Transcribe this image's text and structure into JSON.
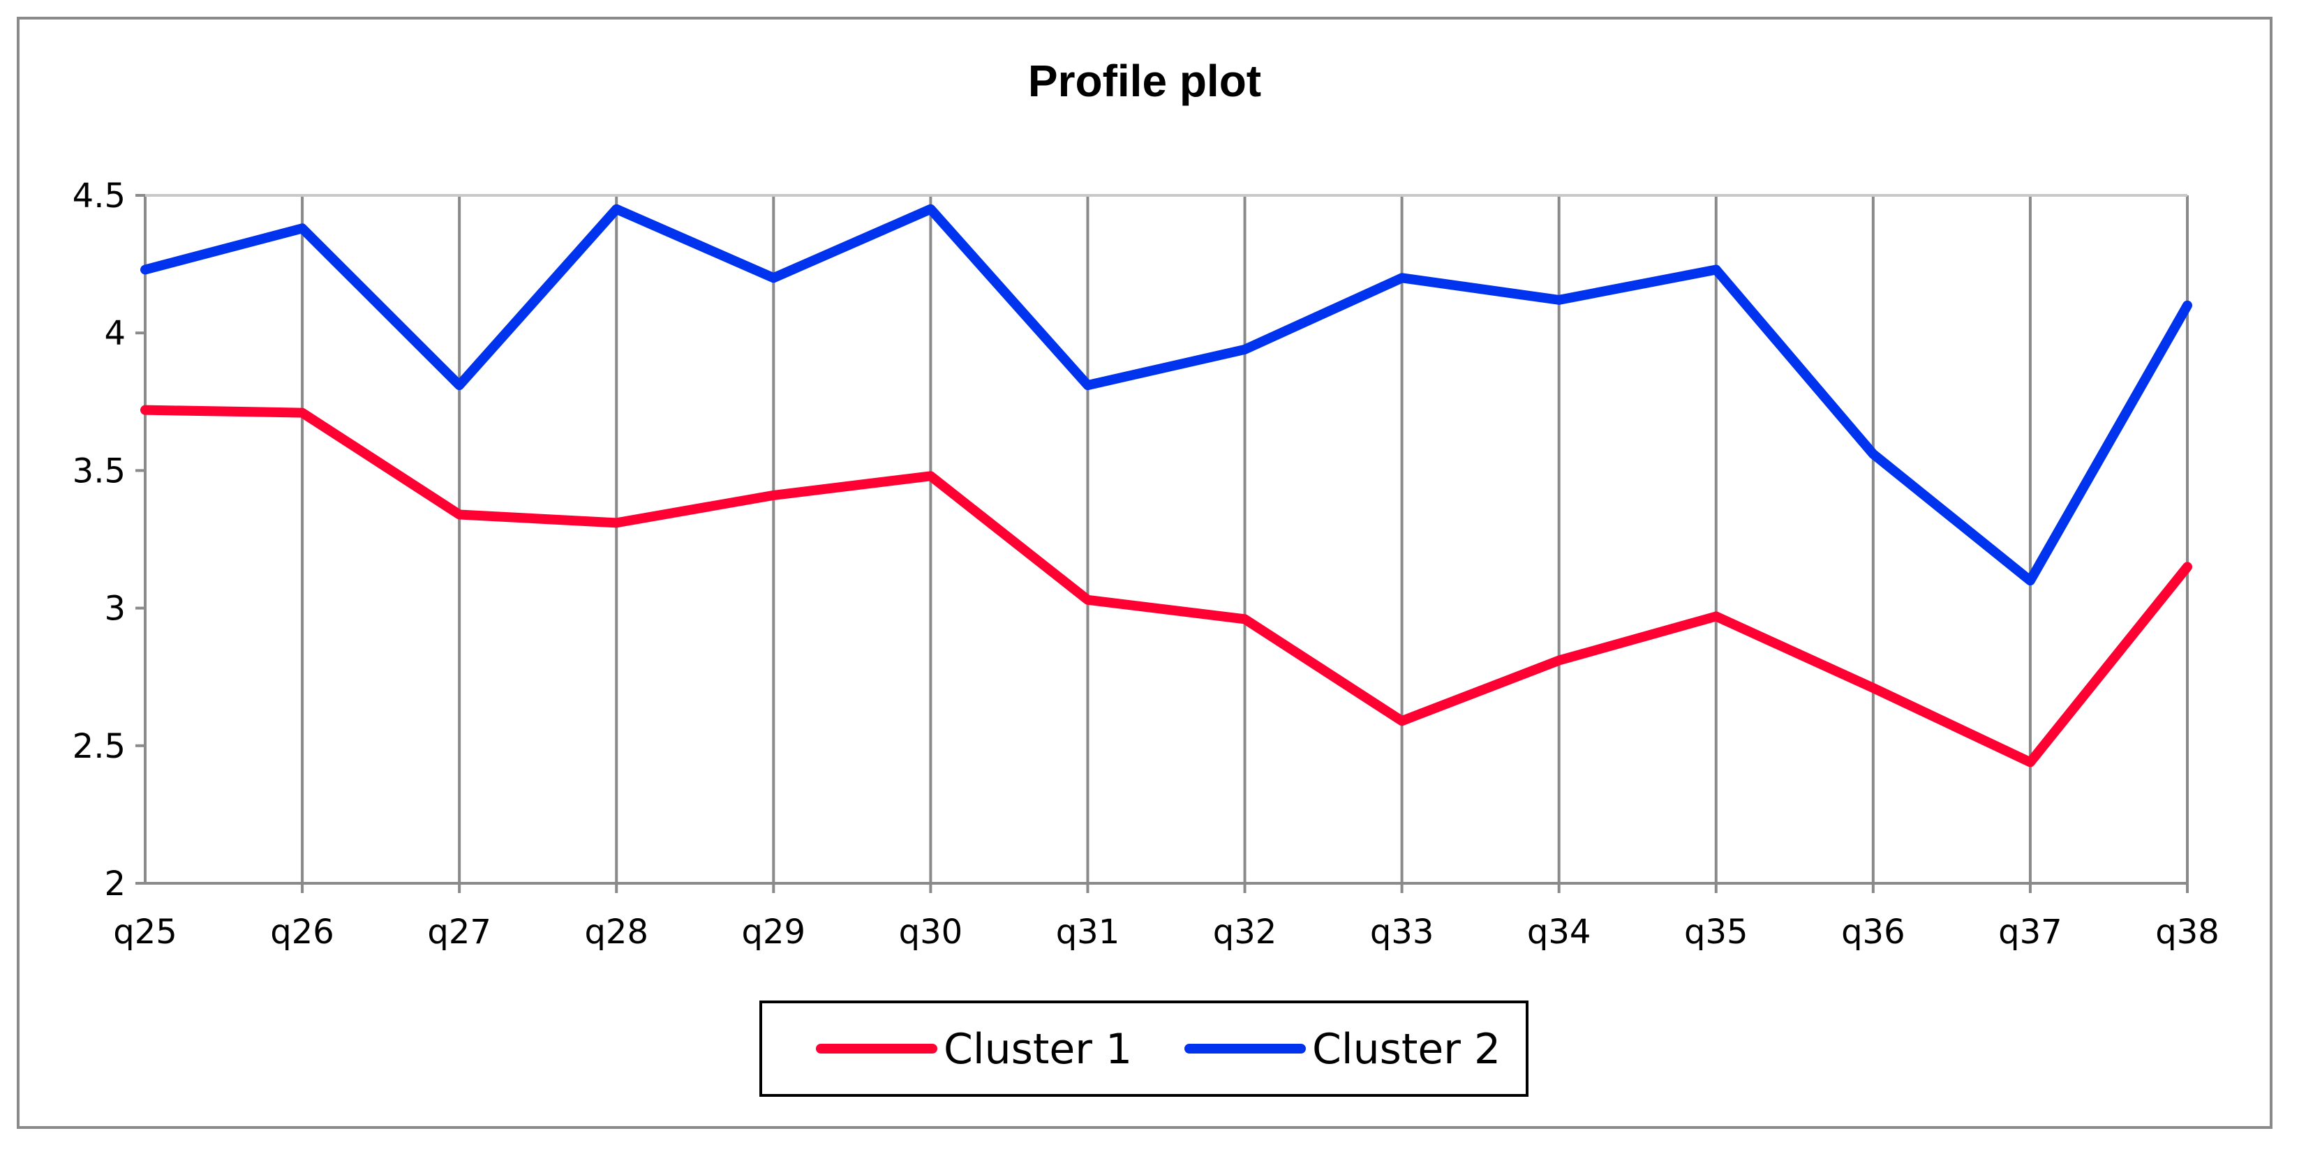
{
  "chart_data": {
    "type": "line",
    "title": "Profile plot",
    "xlabel": "",
    "ylabel": "",
    "categories": [
      "q25",
      "q26",
      "q27",
      "q28",
      "q29",
      "q30",
      "q31",
      "q32",
      "q33",
      "q34",
      "q35",
      "q36",
      "q37",
      "q38"
    ],
    "ylim": [
      2,
      4.5
    ],
    "yticks": [
      "2",
      "2.5",
      "3",
      "3.5",
      "4",
      "4.5"
    ],
    "grid": "vertical",
    "legend": "bottom",
    "series": [
      {
        "name": "Cluster 1",
        "color": "#ff0033",
        "values": [
          3.72,
          3.71,
          3.34,
          3.31,
          3.41,
          3.48,
          3.03,
          2.96,
          2.59,
          2.81,
          2.97,
          2.71,
          2.44,
          3.15
        ]
      },
      {
        "name": "Cluster 2",
        "color": "#0033ee",
        "values": [
          4.23,
          4.38,
          3.81,
          4.45,
          4.2,
          4.45,
          3.81,
          3.94,
          4.2,
          4.12,
          4.23,
          3.56,
          3.1,
          4.1
        ]
      }
    ]
  }
}
